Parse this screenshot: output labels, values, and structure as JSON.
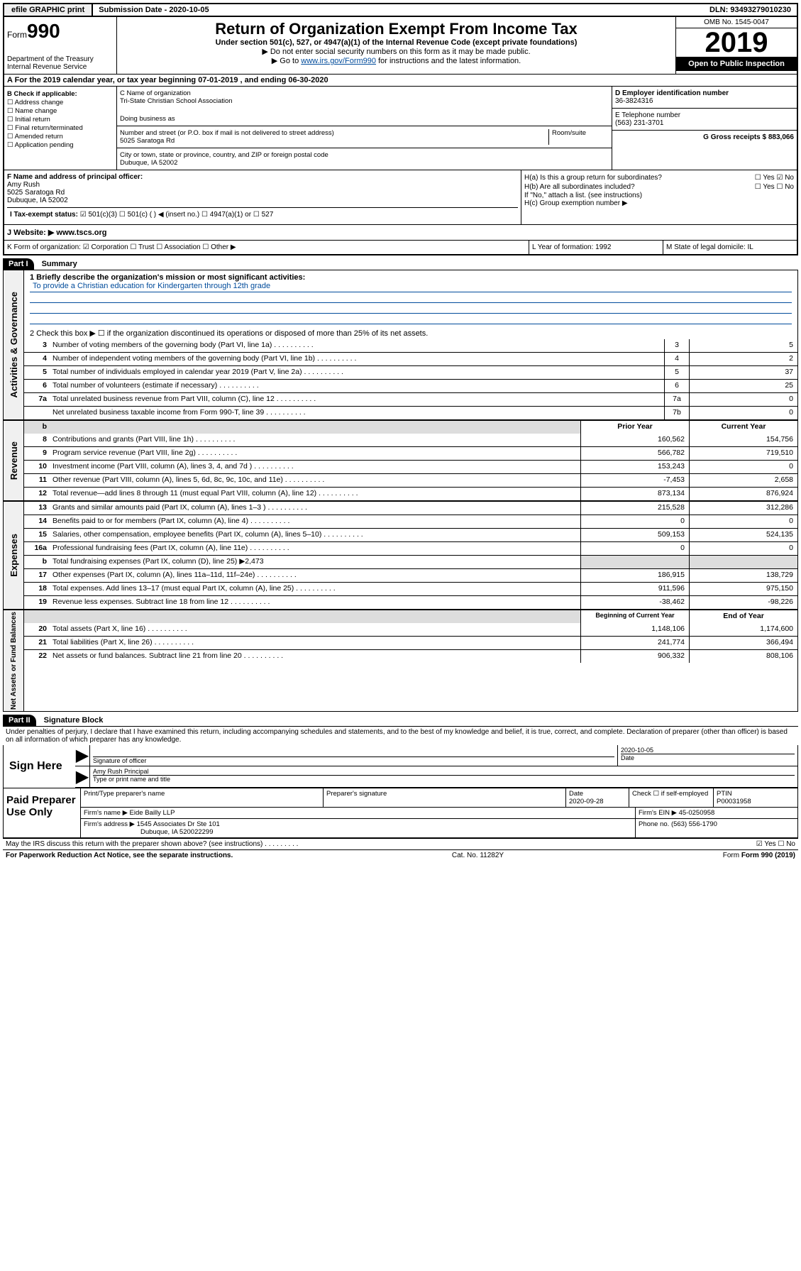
{
  "topbar": {
    "efile": "efile GRAPHIC print",
    "submission_label": "Submission Date - 2020-10-05",
    "dln": "DLN: 93493279010230"
  },
  "header": {
    "form_word": "Form",
    "form_num": "990",
    "dept": "Department of the Treasury\nInternal Revenue Service",
    "title": "Return of Organization Exempt From Income Tax",
    "subtitle": "Under section 501(c), 527, or 4947(a)(1) of the Internal Revenue Code (except private foundations)",
    "note1": "▶ Do not enter social security numbers on this form as it may be made public.",
    "note2_pre": "▶ Go to ",
    "note2_link": "www.irs.gov/Form990",
    "note2_post": " for instructions and the latest information.",
    "omb": "OMB No. 1545-0047",
    "year": "2019",
    "open": "Open to Public Inspection"
  },
  "rowA": "A  For the 2019 calendar year, or tax year beginning 07-01-2019    , and ending 06-30-2020",
  "checkB": {
    "label": "B Check if applicable:",
    "items": [
      "☐ Address change",
      "☐ Name change",
      "☐ Initial return",
      "☐ Final return/terminated",
      "☐ Amended return",
      "☐ Application pending"
    ]
  },
  "blockC": {
    "name_label": "C Name of organization",
    "name": "Tri-State Christian School Association",
    "dba_label": "Doing business as",
    "addr_label": "Number and street (or P.O. box if mail is not delivered to street address)",
    "room_label": "Room/suite",
    "addr": "5025 Saratoga Rd",
    "city_label": "City or town, state or province, country, and ZIP or foreign postal code",
    "city": "Dubuque, IA  52002"
  },
  "blockD": {
    "ein_label": "D Employer identification number",
    "ein": "36-3824316",
    "phone_label": "E Telephone number",
    "phone": "(563) 231-3701",
    "gross_label": "G Gross receipts $ 883,066"
  },
  "blockF": {
    "label": "F  Name and address of principal officer:",
    "name": "Amy Rush",
    "addr1": "5025 Saratoga Rd",
    "addr2": "Dubuque, IA  52002"
  },
  "blockH": {
    "a": "H(a)  Is this a group return for subordinates?",
    "a_yes": "☐ Yes",
    "a_no": "☑ No",
    "b": "H(b)  Are all subordinates included?",
    "b_yes": "☐ Yes",
    "b_no": "☐ No",
    "b_note": "If \"No,\" attach a list. (see instructions)",
    "c": "H(c)  Group exemption number ▶"
  },
  "taxStatus": {
    "label": "I  Tax-exempt status:",
    "opts": "☑ 501(c)(3)   ☐ 501(c) (  ) ◀ (insert no.)   ☐ 4947(a)(1) or   ☐ 527"
  },
  "website": {
    "label": "J  Website: ▶",
    "value": "www.tscs.org"
  },
  "rowK": {
    "k": "K Form of organization:  ☑ Corporation  ☐ Trust  ☐ Association  ☐ Other ▶",
    "l": "L Year of formation: 1992",
    "m": "M State of legal domicile: IL"
  },
  "part1": {
    "part": "Part I",
    "title": "Summary",
    "line1_label": "1  Briefly describe the organization's mission or most significant activities:",
    "mission": "To provide a Christian education for Kindergarten through 12th grade",
    "line2": "2   Check this box ▶ ☐  if the organization discontinued its operations or disposed of more than 25% of its net assets.",
    "rows": [
      {
        "n": "3",
        "t": "Number of voting members of the governing body (Part VI, line 1a)",
        "b": "3",
        "v": "5"
      },
      {
        "n": "4",
        "t": "Number of independent voting members of the governing body (Part VI, line 1b)",
        "b": "4",
        "v": "2"
      },
      {
        "n": "5",
        "t": "Total number of individuals employed in calendar year 2019 (Part V, line 2a)",
        "b": "5",
        "v": "37"
      },
      {
        "n": "6",
        "t": "Total number of volunteers (estimate if necessary)",
        "b": "6",
        "v": "25"
      },
      {
        "n": "7a",
        "t": "Total unrelated business revenue from Part VIII, column (C), line 12",
        "b": "7a",
        "v": "0"
      },
      {
        "n": "",
        "t": "Net unrelated business taxable income from Form 990-T, line 39",
        "b": "7b",
        "v": "0"
      }
    ],
    "header_prior": "Prior Year",
    "header_current": "Current Year",
    "revenue": [
      {
        "n": "8",
        "t": "Contributions and grants (Part VIII, line 1h)",
        "p": "160,562",
        "c": "154,756"
      },
      {
        "n": "9",
        "t": "Program service revenue (Part VIII, line 2g)",
        "p": "566,782",
        "c": "719,510"
      },
      {
        "n": "10",
        "t": "Investment income (Part VIII, column (A), lines 3, 4, and 7d )",
        "p": "153,243",
        "c": "0"
      },
      {
        "n": "11",
        "t": "Other revenue (Part VIII, column (A), lines 5, 6d, 8c, 9c, 10c, and 11e)",
        "p": "-7,453",
        "c": "2,658"
      },
      {
        "n": "12",
        "t": "Total revenue—add lines 8 through 11 (must equal Part VIII, column (A), line 12)",
        "p": "873,134",
        "c": "876,924"
      }
    ],
    "expenses": [
      {
        "n": "13",
        "t": "Grants and similar amounts paid (Part IX, column (A), lines 1–3 )",
        "p": "215,528",
        "c": "312,286"
      },
      {
        "n": "14",
        "t": "Benefits paid to or for members (Part IX, column (A), line 4)",
        "p": "0",
        "c": "0"
      },
      {
        "n": "15",
        "t": "Salaries, other compensation, employee benefits (Part IX, column (A), lines 5–10)",
        "p": "509,153",
        "c": "524,135"
      },
      {
        "n": "16a",
        "t": "Professional fundraising fees (Part IX, column (A), line 11e)",
        "p": "0",
        "c": "0"
      },
      {
        "n": "b",
        "t": "Total fundraising expenses (Part IX, column (D), line 25) ▶2,473",
        "p": "",
        "c": "",
        "shaded": true
      },
      {
        "n": "17",
        "t": "Other expenses (Part IX, column (A), lines 11a–11d, 11f–24e)",
        "p": "186,915",
        "c": "138,729"
      },
      {
        "n": "18",
        "t": "Total expenses. Add lines 13–17 (must equal Part IX, column (A), line 25)",
        "p": "911,596",
        "c": "975,150"
      },
      {
        "n": "19",
        "t": "Revenue less expenses. Subtract line 18 from line 12",
        "p": "-38,462",
        "c": "-98,226"
      }
    ],
    "header_begin": "Beginning of Current Year",
    "header_end": "End of Year",
    "net": [
      {
        "n": "20",
        "t": "Total assets (Part X, line 16)",
        "p": "1,148,106",
        "c": "1,174,600"
      },
      {
        "n": "21",
        "t": "Total liabilities (Part X, line 26)",
        "p": "241,774",
        "c": "366,494"
      },
      {
        "n": "22",
        "t": "Net assets or fund balances. Subtract line 21 from line 20",
        "p": "906,332",
        "c": "808,106"
      }
    ],
    "vlabels": {
      "gov": "Activities & Governance",
      "rev": "Revenue",
      "exp": "Expenses",
      "net": "Net Assets or Fund Balances"
    }
  },
  "part2": {
    "part": "Part II",
    "title": "Signature Block",
    "perjury": "Under penalties of perjury, I declare that I have examined this return, including accompanying schedules and statements, and to the best of my knowledge and belief, it is true, correct, and complete. Declaration of preparer (other than officer) is based on all information of which preparer has any knowledge."
  },
  "sign": {
    "here": "Sign Here",
    "sig_officer": "Signature of officer",
    "date": "2020-10-05",
    "date_label": "Date",
    "typed": "Amy Rush  Principal",
    "typed_label": "Type or print name and title"
  },
  "paid": {
    "label": "Paid Preparer Use Only",
    "r1": {
      "a": "Print/Type preparer's name",
      "b": "Preparer's signature",
      "c_label": "Date",
      "c": "2020-09-28",
      "d": "Check ☐ if self-employed",
      "e_label": "PTIN",
      "e": "P00031958"
    },
    "r2": {
      "a": "Firm's name    ▶ Eide Bailly LLP",
      "b": "Firm's EIN ▶ 45-0250958"
    },
    "r3": {
      "a": "Firm's address ▶ 1545 Associates Dr Ste 101",
      "b": "Phone no. (563) 556-1790"
    },
    "r3b": "Dubuque, IA  520022299"
  },
  "discuss": {
    "q": "May the IRS discuss this return with the preparer shown above? (see instructions)",
    "yes": "☑ Yes",
    "no": "☐ No"
  },
  "footer": {
    "left": "For Paperwork Reduction Act Notice, see the separate instructions.",
    "mid": "Cat. No. 11282Y",
    "right": "Form 990 (2019)"
  }
}
